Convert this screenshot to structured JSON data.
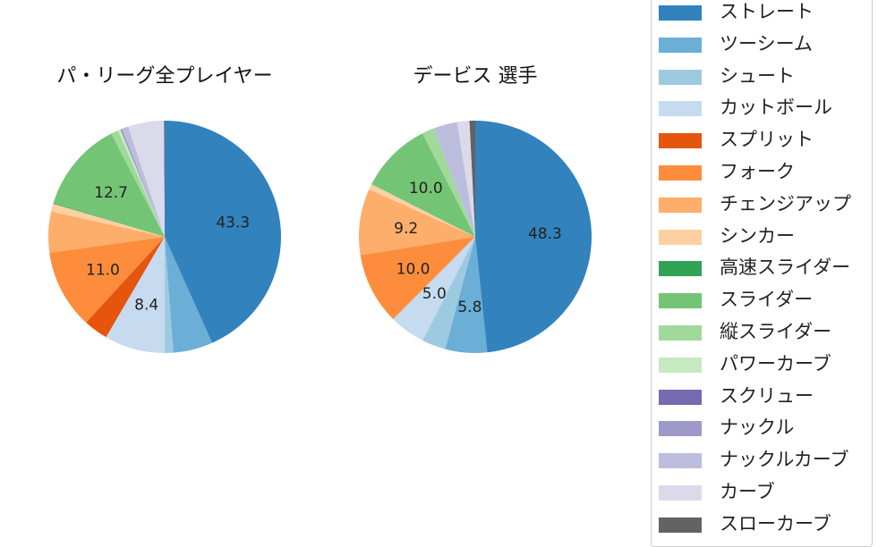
{
  "chart_data": [
    {
      "type": "pie",
      "title": "パ・リーグ全プレイヤー",
      "slices": [
        {
          "name": "ストレート",
          "value": 43.3,
          "label": "43.3"
        },
        {
          "name": "ツーシーム",
          "value": 5.5,
          "label": ""
        },
        {
          "name": "シュート",
          "value": 1.2,
          "label": ""
        },
        {
          "name": "カットボール",
          "value": 8.4,
          "label": "8.4"
        },
        {
          "name": "スプリット",
          "value": 3.4,
          "label": ""
        },
        {
          "name": "フォーク",
          "value": 11.0,
          "label": "11.0"
        },
        {
          "name": "チェンジアップ",
          "value": 5.7,
          "label": ""
        },
        {
          "name": "シンカー",
          "value": 1.1,
          "label": ""
        },
        {
          "name": "高速スライダー",
          "value": 0.1,
          "label": ""
        },
        {
          "name": "スライダー",
          "value": 12.7,
          "label": "12.7"
        },
        {
          "name": "縦スライダー",
          "value": 1.0,
          "label": ""
        },
        {
          "name": "パワーカーブ",
          "value": 0.4,
          "label": ""
        },
        {
          "name": "スクリュー",
          "value": 0.1,
          "label": ""
        },
        {
          "name": "ナックル",
          "value": 0.1,
          "label": ""
        },
        {
          "name": "ナックルカーブ",
          "value": 0.9,
          "label": ""
        },
        {
          "name": "カーブ",
          "value": 5.0,
          "label": ""
        },
        {
          "name": "スローカーブ",
          "value": 0.1,
          "label": ""
        }
      ]
    },
    {
      "type": "pie",
      "title": "デービス  選手",
      "slices": [
        {
          "name": "ストレート",
          "value": 48.3,
          "label": "48.3"
        },
        {
          "name": "ツーシーム",
          "value": 5.8,
          "label": "5.8"
        },
        {
          "name": "シュート",
          "value": 3.3,
          "label": ""
        },
        {
          "name": "カットボール",
          "value": 5.0,
          "label": "5.0"
        },
        {
          "name": "スプリット",
          "value": 0.0,
          "label": ""
        },
        {
          "name": "フォーク",
          "value": 10.0,
          "label": "10.0"
        },
        {
          "name": "チェンジアップ",
          "value": 9.2,
          "label": "9.2"
        },
        {
          "name": "シンカー",
          "value": 0.8,
          "label": ""
        },
        {
          "name": "高速スライダー",
          "value": 0.0,
          "label": ""
        },
        {
          "name": "スライダー",
          "value": 10.0,
          "label": "10.0"
        },
        {
          "name": "縦スライダー",
          "value": 1.7,
          "label": ""
        },
        {
          "name": "パワーカーブ",
          "value": 0.0,
          "label": ""
        },
        {
          "name": "スクリュー",
          "value": 0.0,
          "label": ""
        },
        {
          "name": "ナックル",
          "value": 0.0,
          "label": ""
        },
        {
          "name": "ナックルカーブ",
          "value": 3.3,
          "label": ""
        },
        {
          "name": "カーブ",
          "value": 1.7,
          "label": ""
        },
        {
          "name": "スローカーブ",
          "value": 0.8,
          "label": ""
        }
      ]
    }
  ],
  "legend": {
    "placement": "right",
    "items": [
      {
        "label": "ストレート",
        "color": "#3182bd"
      },
      {
        "label": "ツーシーム",
        "color": "#6baed6"
      },
      {
        "label": "シュート",
        "color": "#9ecae1"
      },
      {
        "label": "カットボール",
        "color": "#c6dbef"
      },
      {
        "label": "スプリット",
        "color": "#e6550d"
      },
      {
        "label": "フォーク",
        "color": "#fd8d3c"
      },
      {
        "label": "チェンジアップ",
        "color": "#fdae6b"
      },
      {
        "label": "シンカー",
        "color": "#fdd0a2"
      },
      {
        "label": "高速スライダー",
        "color": "#31a354"
      },
      {
        "label": "スライダー",
        "color": "#74c476"
      },
      {
        "label": "縦スライダー",
        "color": "#a1d99b"
      },
      {
        "label": "パワーカーブ",
        "color": "#c7e9c0"
      },
      {
        "label": "スクリュー",
        "color": "#756bb1"
      },
      {
        "label": "ナックル",
        "color": "#9e9ac8"
      },
      {
        "label": "ナックルカーブ",
        "color": "#bcbddc"
      },
      {
        "label": "カーブ",
        "color": "#dadaeb"
      },
      {
        "label": "スローカーブ",
        "color": "#636363"
      }
    ]
  }
}
